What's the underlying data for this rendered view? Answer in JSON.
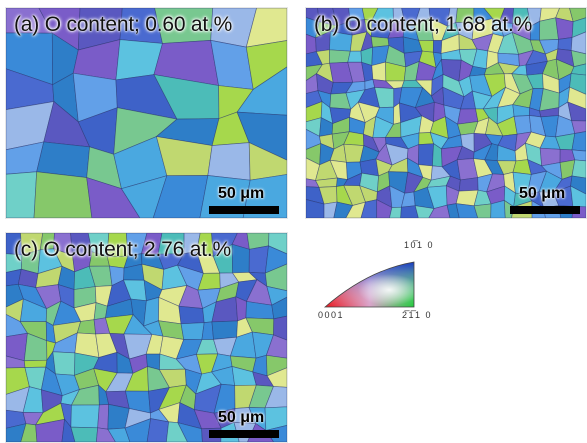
{
  "panels": [
    {
      "id": "a",
      "label": "(a) O content; 0.60 at.%",
      "scale_label": "50 μm",
      "grains_x": 7,
      "grains_y": 6,
      "seed": 11
    },
    {
      "id": "b",
      "label": "(b) O content; 1.68 at.%",
      "scale_label": "50 μm",
      "grains_x": 20,
      "grains_y": 15,
      "seed": 23
    },
    {
      "id": "c",
      "label": "(c) O content; 2.76 at.%",
      "scale_label": "50 μm",
      "grains_x": 16,
      "grains_y": 12,
      "seed": 37
    }
  ],
  "legend": {
    "top_label": "10̅1 0",
    "left_label": "0001",
    "right_label": "2̅1̅1 0",
    "colors": {
      "corner_0001": "#e8121a",
      "corner_2110": "#1fc93a",
      "corner_1010": "#1833c8"
    }
  },
  "grain_palette": [
    "#3a8ad8",
    "#4aa8e0",
    "#5cc2e0",
    "#6fd0c8",
    "#3e62c8",
    "#5a58c0",
    "#7a5cc8",
    "#86c86a",
    "#a6d84c",
    "#78c890",
    "#4cbcb8",
    "#2e7ec8",
    "#9ab8e8",
    "#c0d870",
    "#8a70d0",
    "#e0e890",
    "#62a0e8",
    "#4a6ad0"
  ]
}
